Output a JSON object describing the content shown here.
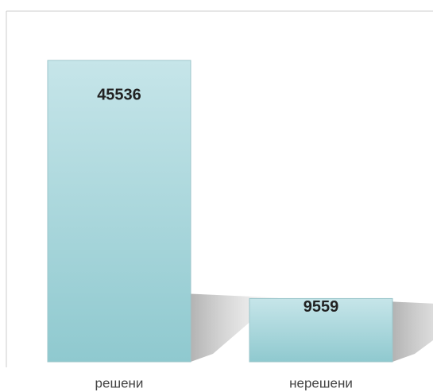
{
  "chart_data": {
    "type": "bar",
    "categories": [
      "решени",
      "нерешени"
    ],
    "values": [
      45536,
      9559
    ],
    "color": "#9fd0d6"
  }
}
